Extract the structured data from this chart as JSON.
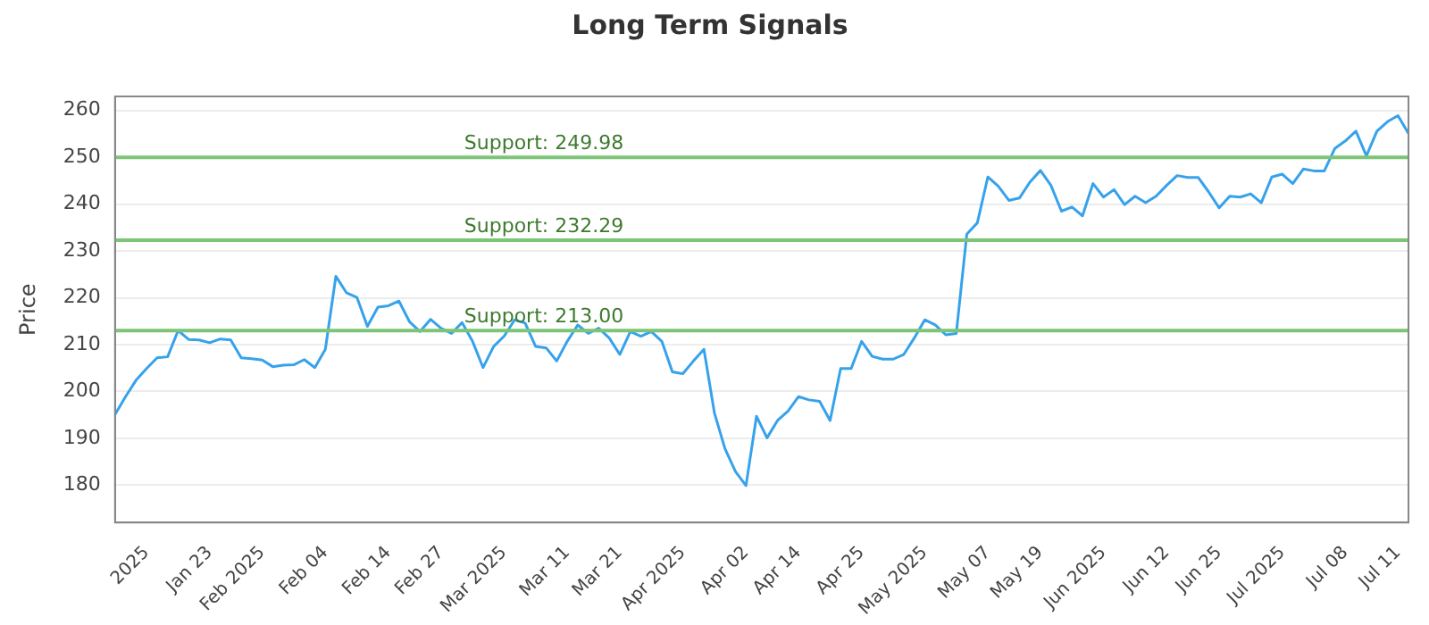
{
  "chart_data": {
    "type": "line",
    "title": "Long Term Signals",
    "ylabel": "Price",
    "categories": [
      null,
      null,
      null,
      "2025",
      null,
      null,
      null,
      null,
      null,
      "Jan 23",
      null,
      null,
      null,
      null,
      "Feb 2025",
      null,
      null,
      null,
      null,
      null,
      "Feb 04",
      null,
      null,
      null,
      null,
      null,
      "Feb 14",
      null,
      null,
      null,
      null,
      "Feb 27",
      null,
      null,
      null,
      null,
      null,
      "Mar 2025",
      null,
      null,
      null,
      null,
      null,
      "Mar 11",
      null,
      null,
      null,
      null,
      "Mar 21",
      null,
      null,
      null,
      null,
      null,
      "Apr 2025",
      null,
      null,
      null,
      null,
      null,
      "Apr 02",
      null,
      null,
      null,
      null,
      "Apr 14",
      null,
      null,
      null,
      null,
      null,
      "Apr 25",
      null,
      null,
      null,
      null,
      null,
      "May 2025",
      null,
      null,
      null,
      null,
      null,
      "May 07",
      null,
      null,
      null,
      null,
      "May 19",
      null,
      null,
      null,
      null,
      null,
      "Jun 2025",
      null,
      null,
      null,
      null,
      null,
      "Jun 12",
      null,
      null,
      null,
      null,
      "Jun 25",
      null,
      null,
      null,
      null,
      null,
      "Jul 2025",
      null,
      null,
      null,
      null,
      null,
      "Jul 08",
      null,
      null,
      null,
      null,
      "Jul 11",
      null
    ],
    "series": [
      {
        "color": "#36a2eb",
        "values": [
          195.1,
          198.9,
          202.4,
          204.9,
          207.2,
          207.4,
          213.0,
          211.1,
          211.0,
          210.4,
          211.2,
          211.0,
          207.2,
          207.0,
          206.7,
          205.3,
          205.6,
          205.7,
          206.8,
          205.1,
          209.0,
          224.6,
          221.1,
          220.1,
          213.9,
          218.0,
          218.3,
          219.3,
          214.9,
          212.8,
          215.4,
          213.5,
          212.4,
          214.7,
          210.7,
          205.1,
          209.6,
          211.8,
          215.3,
          214.6,
          209.6,
          209.3,
          206.5,
          210.7,
          214.2,
          212.4,
          213.5,
          211.4,
          207.9,
          212.8,
          211.8,
          212.8,
          210.7,
          204.2,
          203.8,
          206.5,
          209.0,
          195.4,
          187.8,
          182.9,
          179.9,
          194.7,
          190.1,
          193.8,
          195.8,
          198.9,
          198.2,
          197.9,
          193.8,
          204.9,
          204.9,
          210.7,
          207.5,
          206.9,
          206.9,
          207.9,
          211.4,
          215.3,
          214.2,
          212.1,
          212.4,
          233.6,
          236.0,
          245.8,
          243.8,
          240.8,
          241.3,
          244.7,
          247.2,
          244.0,
          238.5,
          239.4,
          237.5,
          244.4,
          241.5,
          243.1,
          239.9,
          241.7,
          240.3,
          241.7,
          244.0,
          246.1,
          245.7,
          245.7,
          242.6,
          239.2,
          241.7,
          241.5,
          242.2,
          240.3,
          245.8,
          246.4,
          244.4,
          247.5,
          247.1,
          247.1,
          251.9,
          253.5,
          255.6,
          250.3,
          255.6,
          257.6,
          258.9,
          255.1
        ]
      }
    ],
    "ylim": [
      172,
      263
    ],
    "yticks": [
      180,
      190,
      200,
      210,
      220,
      230,
      240,
      250,
      260
    ],
    "grid": "y",
    "legend": false,
    "marker": "none",
    "line_style": "solid",
    "ref_lines": [
      {
        "axis": "y",
        "value": 249.98,
        "label": "Support: 249.98",
        "color": "#7cc576"
      },
      {
        "axis": "y",
        "value": 232.29,
        "label": "Support: 232.29",
        "color": "#7cc576"
      },
      {
        "axis": "y",
        "value": 213.0,
        "label": "Support: 213.00",
        "color": "#7cc576"
      }
    ]
  }
}
